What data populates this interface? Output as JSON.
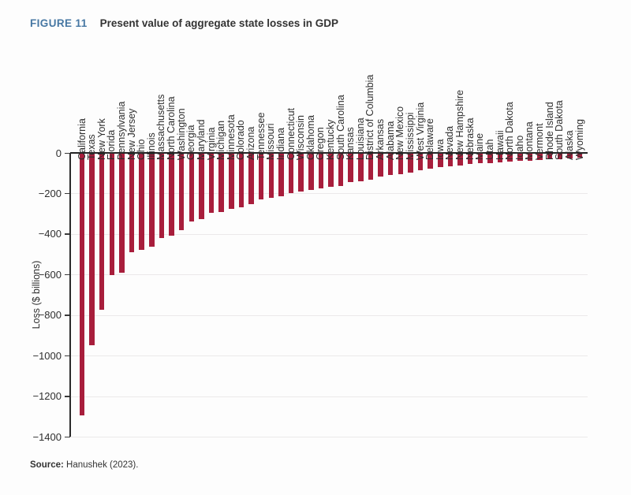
{
  "figure": {
    "label": "FIGURE 11",
    "title": "Present value of aggregate state losses in GDP"
  },
  "source": {
    "label": "Source:",
    "text": "Hanushek (2023)."
  },
  "colors": {
    "bar": "#A81E3C",
    "accent_blue": "#4677A3",
    "grid": "#EBE9EA",
    "axis": "#242424",
    "text": "#2e2e2e"
  },
  "chart_data": {
    "type": "bar",
    "title": "Present value of aggregate state losses in GDP",
    "xlabel": "",
    "ylabel": "Loss ($ billions)",
    "ylim": [
      -1400,
      0
    ],
    "grid": true,
    "bar_color": "#A81E3C",
    "yticks": [
      {
        "v": 0,
        "label": "0"
      },
      {
        "v": -200,
        "label": "−200"
      },
      {
        "v": -400,
        "label": "−400"
      },
      {
        "v": -600,
        "label": "−600"
      },
      {
        "v": -800,
        "label": "−800"
      },
      {
        "v": -1000,
        "label": "−1000"
      },
      {
        "v": -1200,
        "label": "−1200"
      },
      {
        "v": -1400,
        "label": "−1400"
      }
    ],
    "categories": [
      "California",
      "Texas",
      "New York",
      "Florida",
      "Pennsylvania",
      "New Jersey",
      "Ohio",
      "Illinois",
      "Massachusetts",
      "North Carolina",
      "Washington",
      "Georgia",
      "Maryland",
      "Virginia",
      "Michigan",
      "Minnesota",
      "Colorado",
      "Arizona",
      "Tennessee",
      "Missouri",
      "Indiana",
      "Connecticut",
      "Wisconsin",
      "Oklahoma",
      "Oregon",
      "Kentucky",
      "South Carolina",
      "Kansas",
      "Louisiana",
      "District of Columbia",
      "Arkansas",
      "Alabama",
      "New Mexico",
      "Mississippi",
      "West Virginia",
      "Delaware",
      "Iowa",
      "Nevada",
      "New Hampshire",
      "Nebraska",
      "Maine",
      "Utah",
      "Hawaii",
      "North Dakota",
      "Idaho",
      "Montana",
      "Vermont",
      "Rhode Island",
      "South Dakota",
      "Alaska",
      "Wyoming"
    ],
    "values": [
      -1290,
      -945,
      -770,
      -600,
      -588,
      -485,
      -476,
      -459,
      -415,
      -405,
      -376,
      -334,
      -321,
      -290,
      -286,
      -271,
      -266,
      -250,
      -226,
      -218,
      -211,
      -194,
      -186,
      -179,
      -170,
      -165,
      -161,
      -139,
      -135,
      -130,
      -112,
      -104,
      -100,
      -93,
      -80,
      -74,
      -68,
      -62,
      -57,
      -52,
      -48,
      -46,
      -42,
      -39,
      -36,
      -34,
      -31,
      -28,
      -27,
      -24,
      -21
    ]
  }
}
